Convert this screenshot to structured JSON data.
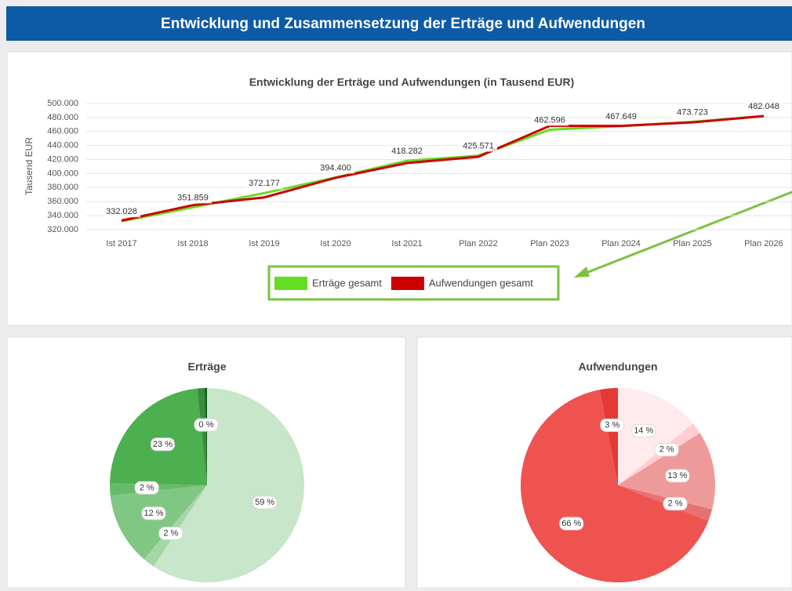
{
  "header": {
    "title": "Entwicklung und Zusammensetzung der Erträge und Aufwendungen"
  },
  "chart_data": [
    {
      "type": "line",
      "title": "Entwicklung der Erträge und Aufwendungen (in Tausend EUR)",
      "y_label": "Tausend EUR",
      "categories": [
        "Ist 2017",
        "Ist 2018",
        "Ist 2019",
        "Ist 2020",
        "Ist 2021",
        "Plan 2022",
        "Plan 2023",
        "Plan 2024",
        "Plan 2025",
        "Plan 2026"
      ],
      "series": [
        {
          "name": "Erträge gesamt",
          "color": "#66dd22",
          "values": [
            332028,
            351859,
            372177,
            394400,
            418282,
            425571,
            462596,
            467649,
            473723,
            482048
          ],
          "value_labels": [
            "332.028",
            "351.859",
            "372.177",
            "394.400",
            "418.282",
            "425.571",
            "462.596",
            "467.649",
            "473.723",
            "482.048"
          ]
        },
        {
          "name": "Aufwendungen gesamt",
          "color": "#cc0000",
          "values": [
            333000,
            355000,
            366000,
            394000,
            415000,
            424000,
            468000,
            468000,
            473000,
            482000
          ]
        }
      ],
      "ylim": [
        320000,
        500000
      ],
      "yticks": [
        {
          "value": 320000,
          "label": "320.000"
        },
        {
          "value": 340000,
          "label": "340.000"
        },
        {
          "value": 360000,
          "label": "360.000"
        },
        {
          "value": 380000,
          "label": "380.000"
        },
        {
          "value": 400000,
          "label": "400.000"
        },
        {
          "value": 420000,
          "label": "420.000"
        },
        {
          "value": 440000,
          "label": "440.000"
        },
        {
          "value": 460000,
          "label": "460.000"
        },
        {
          "value": 480000,
          "label": "480.000"
        },
        {
          "value": 500000,
          "label": "500.000"
        }
      ],
      "grid": true,
      "legend": "bottom"
    },
    {
      "type": "pie",
      "title": "Erträge",
      "values": [
        59,
        2,
        12,
        2,
        23,
        1.2,
        0.4
      ],
      "value_labels": [
        "59 %",
        "2 %",
        "12 %",
        "2 %",
        "23 %",
        null,
        "0 %"
      ],
      "colors": [
        "#c8e6c9",
        "#a5d6a7",
        "#81c784",
        "#66bb6a",
        "#4caf50",
        "#388e3c",
        "#1b5e20"
      ]
    },
    {
      "type": "pie",
      "title": "Aufwendungen",
      "values": [
        14,
        2,
        13,
        2,
        66,
        3
      ],
      "value_labels": [
        "14 %",
        "2 %",
        "13 %",
        "2 %",
        "66 %",
        "3 %"
      ],
      "colors": [
        "#ffebee",
        "#ffcdd2",
        "#ef9a9a",
        "#e57373",
        "#ef5350",
        "#e53935"
      ]
    }
  ]
}
